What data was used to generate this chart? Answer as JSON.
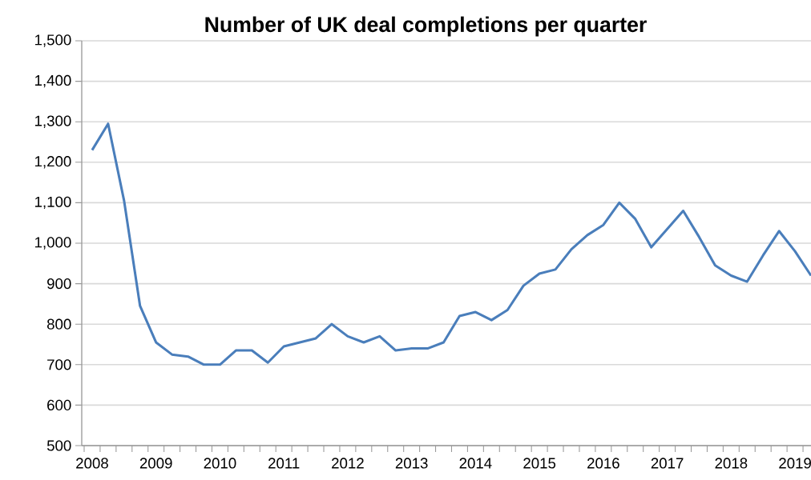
{
  "chart_data": {
    "type": "line",
    "title": "Number of UK deal completions per quarter",
    "categories": [
      "2008",
      null,
      null,
      null,
      "2009",
      null,
      null,
      null,
      "2010",
      null,
      null,
      null,
      "2011",
      null,
      null,
      null,
      "2012",
      null,
      null,
      null,
      "2013",
      null,
      null,
      null,
      "2014",
      null,
      null,
      null,
      "2015",
      null,
      null,
      null,
      "2016",
      null,
      null,
      null,
      "2017",
      null,
      null,
      null,
      "2018",
      null,
      null,
      null,
      "2019",
      null
    ],
    "series": [
      {
        "color": "#4a7ebb",
        "values": [
          1230,
          1295,
          1105,
          845,
          755,
          725,
          720,
          700,
          700,
          735,
          735,
          705,
          745,
          755,
          765,
          800,
          770,
          755,
          770,
          735,
          740,
          740,
          755,
          820,
          830,
          810,
          835,
          895,
          925,
          935,
          985,
          1020,
          1045,
          1100,
          1060,
          990,
          1035,
          1080,
          1015,
          945,
          920,
          905,
          970,
          1030,
          980,
          920
        ]
      }
    ],
    "ylim": [
      500,
      1500
    ],
    "yticks": [
      500,
      600,
      700,
      800,
      900,
      {
        "value": 1000,
        "label": "1,000"
      },
      {
        "value": 1100,
        "label": "1,100"
      },
      {
        "value": 1200,
        "label": "1,200"
      },
      {
        "value": 1300,
        "label": "1,300"
      },
      {
        "value": 1400,
        "label": "1,400"
      },
      {
        "value": 1500,
        "label": "1,500"
      }
    ],
    "grid": "y",
    "marker": "none",
    "line_style": "solid"
  }
}
